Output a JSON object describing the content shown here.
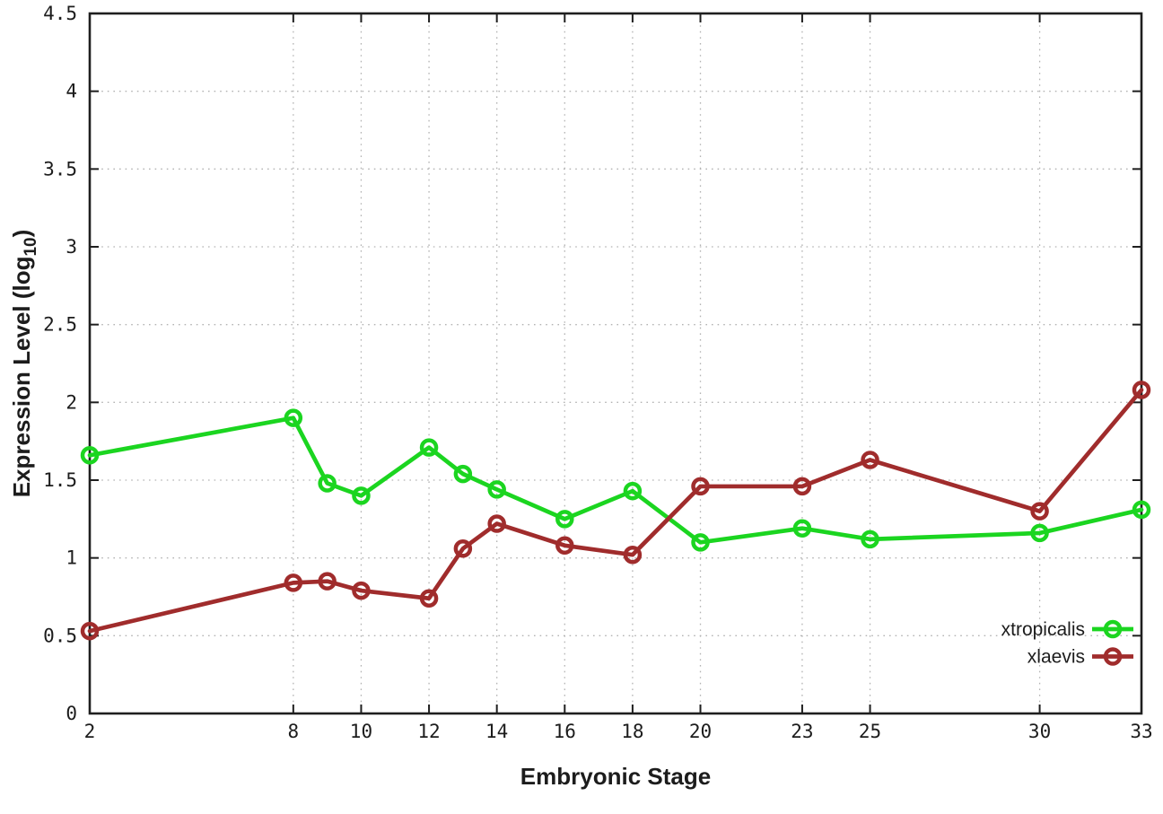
{
  "chart_data": {
    "type": "line",
    "title": "",
    "xlabel": "Embryonic Stage",
    "ylabel_parts": {
      "pre": "Expression Level (log",
      "sub": "10",
      "post": ")"
    },
    "xlim": [
      2,
      33
    ],
    "ylim": [
      0,
      4.5
    ],
    "grid": true,
    "legend_position": "inside-bottom-right",
    "marker": "open-circle",
    "x": [
      2,
      8,
      9,
      10,
      12,
      13,
      14,
      16,
      18,
      20,
      23,
      25,
      30,
      33
    ],
    "xticks": {
      "values": [
        2,
        8,
        10,
        12,
        14,
        16,
        18,
        20,
        23,
        25,
        30,
        33
      ],
      "labels": [
        "2",
        "8",
        "10",
        "12",
        "14",
        "16",
        "18",
        "20",
        "23",
        "25",
        "30",
        "33"
      ]
    },
    "yticks": {
      "values": [
        0,
        0.5,
        1,
        1.5,
        2,
        2.5,
        3,
        3.5,
        4,
        4.5
      ],
      "labels": [
        "0",
        "0.5",
        "1",
        "1.5",
        "2",
        "2.5",
        "3",
        "3.5",
        "4",
        "4.5"
      ]
    },
    "series": [
      {
        "name": "xtropicalis",
        "color": "#1bd520",
        "values": [
          1.66,
          1.9,
          1.48,
          1.4,
          1.71,
          1.54,
          1.44,
          1.25,
          1.43,
          1.1,
          1.19,
          1.12,
          1.16,
          1.31
        ]
      },
      {
        "name": "xlaevis",
        "color": "#a02c2c",
        "values": [
          0.53,
          0.84,
          0.85,
          0.79,
          0.74,
          1.06,
          1.22,
          1.08,
          1.02,
          1.46,
          1.46,
          1.63,
          1.3,
          2.08
        ]
      }
    ],
    "colors": {
      "grid": "#b3b3b3",
      "axis": "#1f1f1f",
      "text": "#1c1c1c",
      "background": "#ffffff"
    }
  }
}
